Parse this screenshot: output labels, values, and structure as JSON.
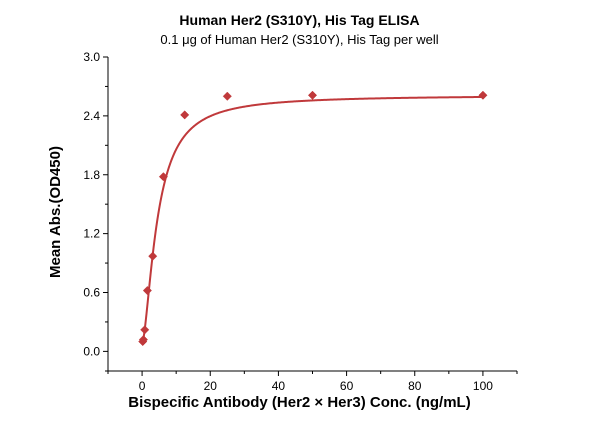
{
  "chart_data": {
    "type": "scatter",
    "title": "Human Her2 (S310Y), His Tag ELISA",
    "subtitle": "0.1 μg of Human Her2 (S310Y), His Tag per well",
    "xlabel": "Bispecific Antibody (Her2 × Her3) Conc. (ng/mL)",
    "ylabel": "Mean Abs.(OD450)",
    "xlim": [
      -10,
      110
    ],
    "ylim": [
      -0.2,
      3.0
    ],
    "xticks": [
      0,
      20,
      40,
      60,
      80,
      100
    ],
    "yticks": [
      0.0,
      0.6,
      1.2,
      1.8,
      2.4,
      3.0
    ],
    "ytick_labels": [
      "0.0",
      "0.6",
      "1.2",
      "1.8",
      "2.4",
      "3.0"
    ],
    "grid": false,
    "series": [
      {
        "color": "#c0393b",
        "marker": "diamond",
        "x": [
          0.195,
          0.39,
          0.78,
          1.56,
          3.125,
          6.25,
          12.5,
          25,
          50,
          100
        ],
        "y": [
          0.1,
          0.12,
          0.22,
          0.62,
          0.97,
          1.78,
          2.41,
          2.6,
          2.61,
          2.61
        ]
      }
    ],
    "fit_curve": {
      "color": "#c0393b",
      "model": "4PL",
      "bottom": 0.08,
      "top": 2.61,
      "ec50": 4.5,
      "hill": 1.6
    }
  }
}
